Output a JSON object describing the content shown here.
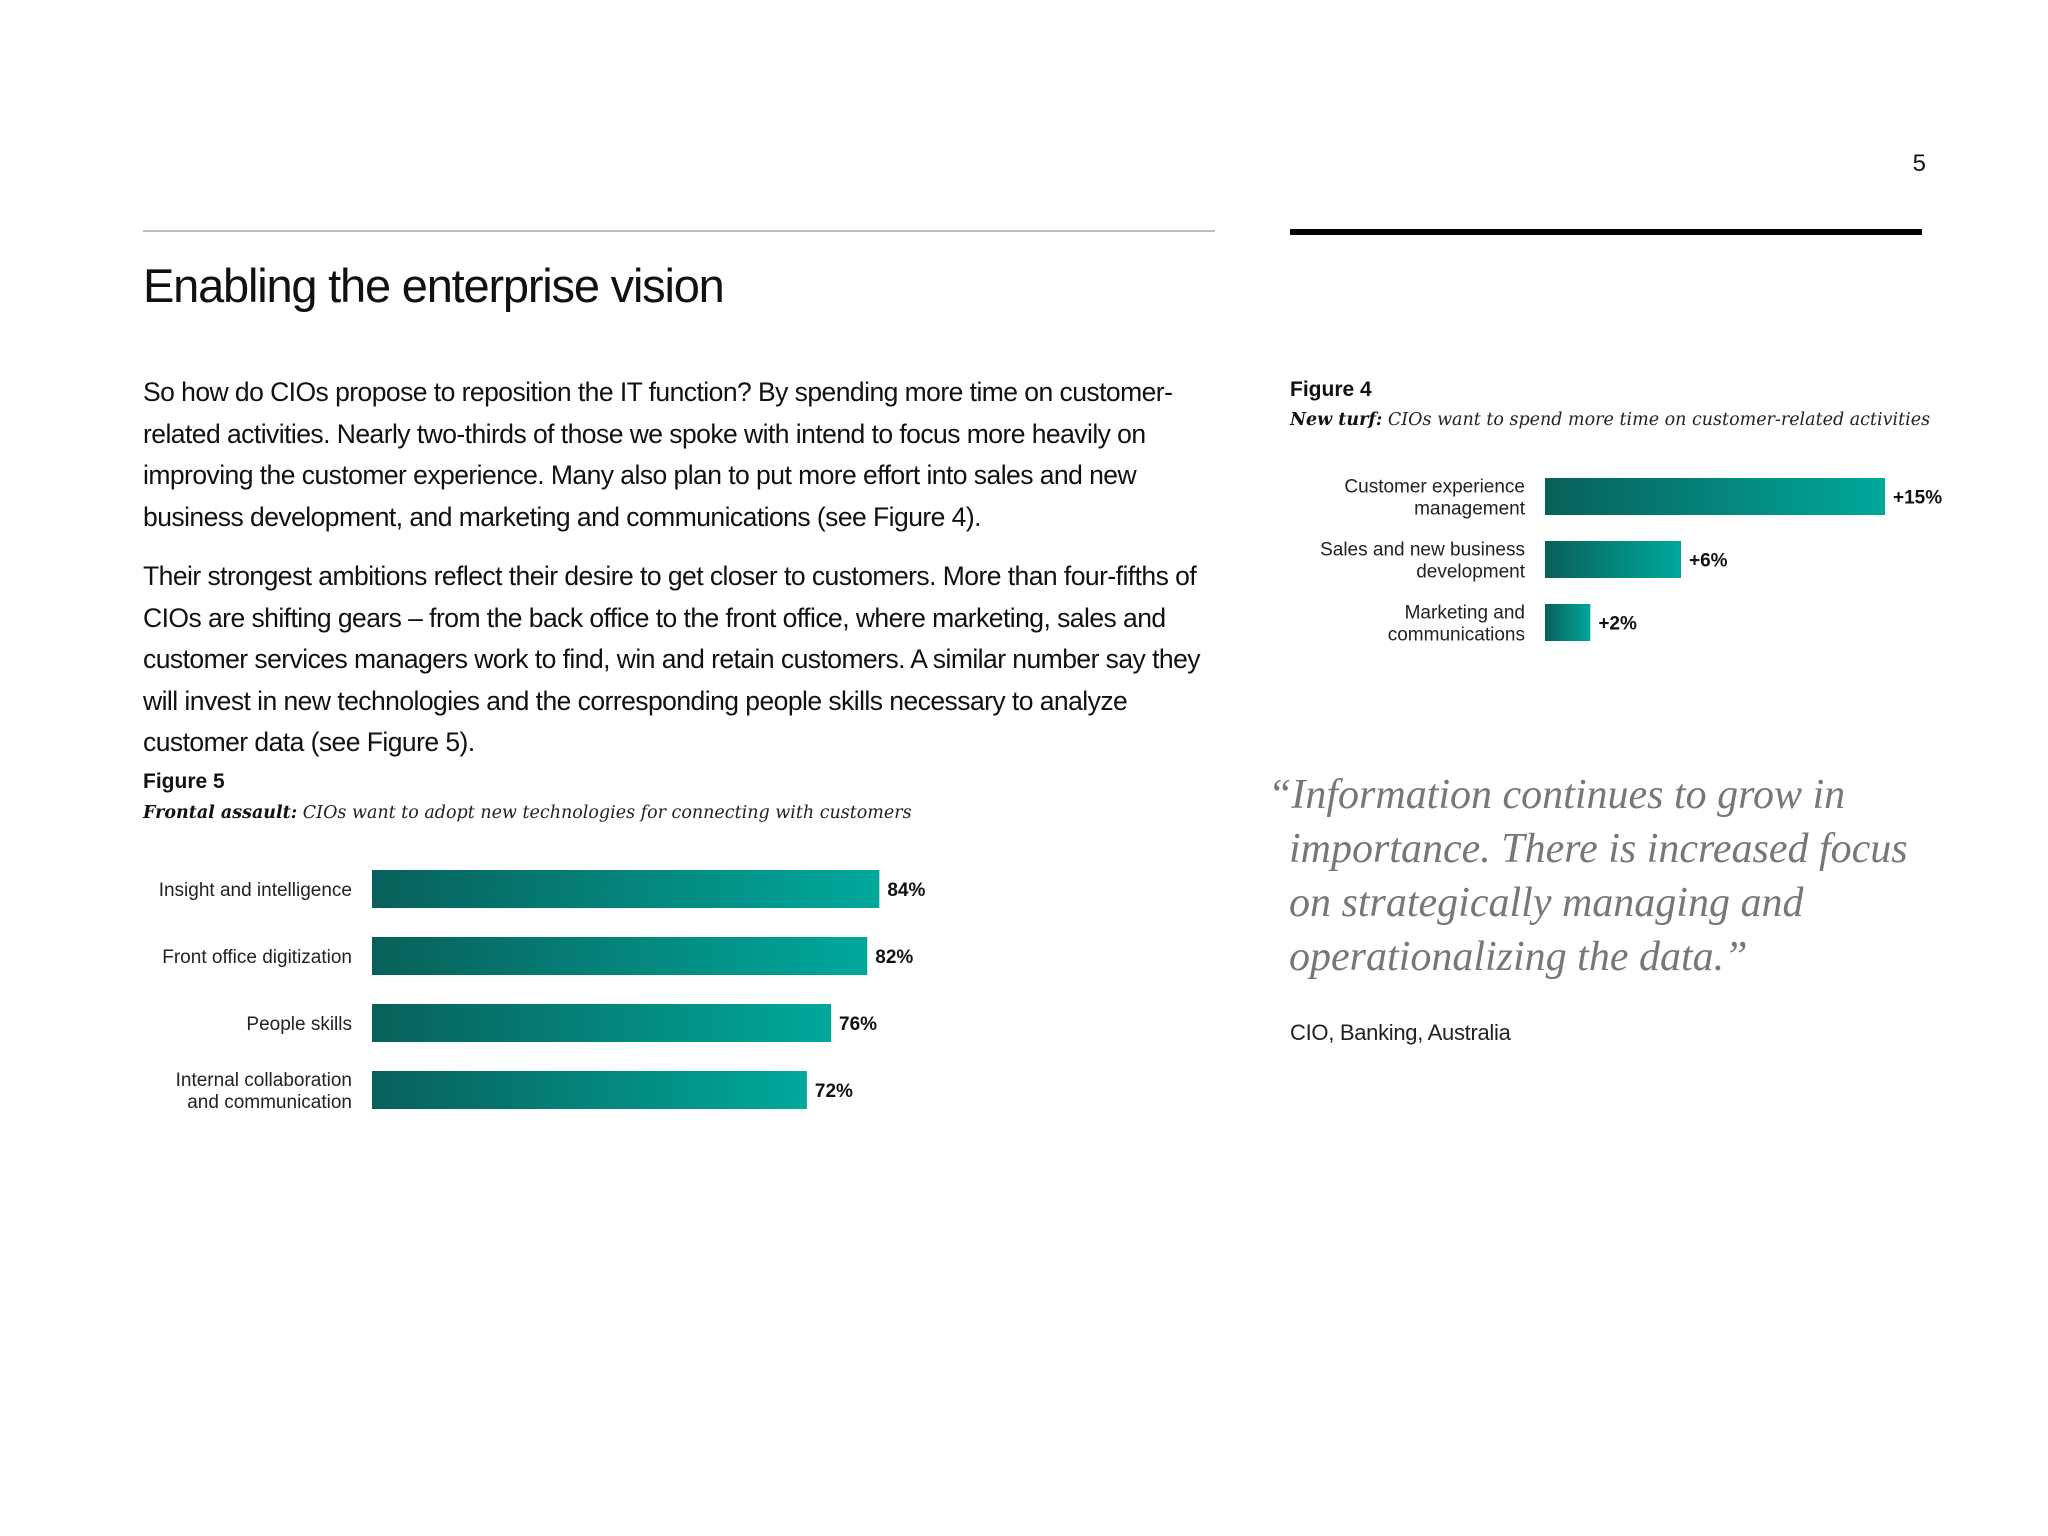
{
  "page": {
    "number": "5",
    "title": "Enabling the enterprise vision"
  },
  "body": {
    "paragraphs": [
      "So how do CIOs propose to reposition the IT function? By spending more time on customer-related activities. Nearly two-thirds of those we spoke with intend to focus more heavily on improving the customer experience. Many also plan to put more effort into sales and new business development, and marketing and communications (see Figure 4).",
      "Their strongest ambitions reflect their desire to get closer to customers. More than four-fifths of CIOs are shifting gears – from the back office to the front office, where marketing, sales and customer services managers work to find, win and retain customers. A similar number say they will invest in new technologies and the corresponding people skills necessary to analyze customer data (see Figure 5)."
    ]
  },
  "figure4": {
    "label": "Figure 4",
    "subtitle_bold": "New turf:",
    "subtitle_rest": " CIOs want to spend more time on customer-related activities"
  },
  "figure5": {
    "label": "Figure 5",
    "subtitle_bold": "Frontal assault:",
    "subtitle_rest": " CIOs want to adopt new technologies for connecting with customers"
  },
  "chart_data": [
    {
      "type": "bar",
      "orientation": "horizontal",
      "title": "New turf: CIOs want to spend more time on customer-related activities",
      "categories": [
        [
          "Customer experience",
          "management"
        ],
        [
          "Sales and new business",
          "development"
        ],
        [
          "Marketing and",
          "communications"
        ]
      ],
      "values": [
        15,
        6,
        2
      ],
      "value_labels": [
        "+15%",
        "+6%",
        "+2%"
      ],
      "xlim": [
        0,
        15
      ]
    },
    {
      "type": "bar",
      "orientation": "horizontal",
      "title": "Frontal assault: CIOs want to adopt new technologies for connecting with customers",
      "categories": [
        [
          "Insight and intelligence"
        ],
        [
          "Front office digitization"
        ],
        [
          "People skills"
        ],
        [
          "Internal collaboration",
          "and communication"
        ]
      ],
      "values": [
        84,
        82,
        76,
        72
      ],
      "value_labels": [
        "84%",
        "82%",
        "76%",
        "72%"
      ],
      "xlim": [
        0,
        100
      ]
    }
  ],
  "quote": {
    "lines": [
      "“Information continues to grow in",
      "importance. There is increased focus",
      "on strategically managing and",
      "operationalizing the data.”"
    ],
    "attribution": "CIO, Banking, Australia"
  },
  "colors": {
    "bar_dark": "#08605a",
    "bar_light": "#00a89c",
    "quote_text": "#777777",
    "rule_dark": "#000000",
    "rule_light": "#bdbdbd"
  }
}
